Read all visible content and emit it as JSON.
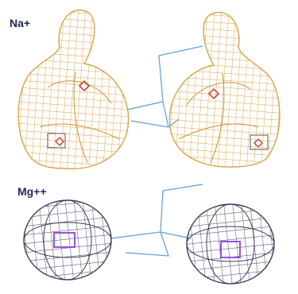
{
  "labels": {
    "top": "Na+",
    "bottom": "Mg++"
  }
}
